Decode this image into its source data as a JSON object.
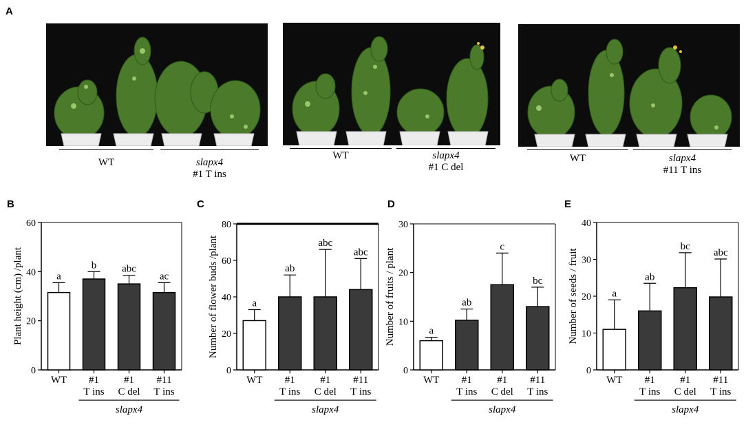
{
  "figure": {
    "panel_letters": [
      "A",
      "B",
      "C",
      "D",
      "E"
    ]
  },
  "photos": [
    {
      "groups": [
        {
          "label": "WT",
          "sublabel": ""
        },
        {
          "label": "slapx4",
          "sublabel": "#1 T ins"
        }
      ]
    },
    {
      "groups": [
        {
          "label": "WT",
          "sublabel": ""
        },
        {
          "label": "slapx4",
          "sublabel": "#1 C del"
        }
      ]
    },
    {
      "groups": [
        {
          "label": "WT",
          "sublabel": ""
        },
        {
          "label": "slapx4",
          "sublabel": "#11 T ins"
        }
      ]
    }
  ],
  "colors": {
    "wt_bar": "#ffffff",
    "mutant_bar": "#3a3a3a",
    "bar_edge": "#000000",
    "photo_bg": "#0c0c0c",
    "plant_green": "#4a7a2a",
    "pot": "#ececec"
  },
  "chart_data": [
    {
      "type": "bar",
      "panel": "B",
      "categories": [
        "WT",
        "#1 T ins",
        "#1 C del",
        "#11 T ins"
      ],
      "category_lines": [
        [
          "WT"
        ],
        [
          "#1",
          "T ins"
        ],
        [
          "#1",
          "C del"
        ],
        [
          "#11",
          "T ins"
        ]
      ],
      "group_label": "slapx4",
      "values": [
        31.5,
        37,
        35,
        31.5
      ],
      "errors": [
        4,
        3,
        3.5,
        4
      ],
      "significance": [
        "a",
        "b",
        "abc",
        "ac"
      ],
      "ylabel": "Plant height (cm) /plant",
      "ylim": [
        0,
        60
      ],
      "yticks": [
        0,
        20,
        40,
        60
      ]
    },
    {
      "type": "bar",
      "panel": "C",
      "categories": [
        "WT",
        "#1 T ins",
        "#1 C del",
        "#11 T ins"
      ],
      "category_lines": [
        [
          "WT"
        ],
        [
          "#1",
          "T ins"
        ],
        [
          "#1",
          "C del"
        ],
        [
          "#11",
          "T ins"
        ]
      ],
      "group_label": "slapx4",
      "values": [
        27,
        40,
        40,
        44
      ],
      "errors": [
        6,
        12,
        26,
        17
      ],
      "significance": [
        "a",
        "ab",
        "abc",
        "abc"
      ],
      "ylabel": "Number of flower buds /plant",
      "ylim": [
        0,
        80
      ],
      "yticks": [
        0,
        20,
        40,
        60,
        80
      ]
    },
    {
      "type": "bar",
      "panel": "D",
      "categories": [
        "WT",
        "#1 T ins",
        "#1 C del",
        "#11 T ins"
      ],
      "category_lines": [
        [
          "WT"
        ],
        [
          "#1",
          "T ins"
        ],
        [
          "#1",
          "C del"
        ],
        [
          "#11",
          "T ins"
        ]
      ],
      "group_label": "slapx4",
      "values": [
        6,
        10.2,
        17.5,
        13
      ],
      "errors": [
        0.7,
        2.3,
        6.5,
        4
      ],
      "significance": [
        "a",
        "ab",
        "c",
        "bc"
      ],
      "ylabel": "Number of fruits / plant",
      "ylim": [
        0,
        30
      ],
      "yticks": [
        0,
        10,
        20,
        30
      ]
    },
    {
      "type": "bar",
      "panel": "E",
      "categories": [
        "WT",
        "#1 T ins",
        "#1 C del",
        "#11 T ins"
      ],
      "category_lines": [
        [
          "WT"
        ],
        [
          "#1",
          "T ins"
        ],
        [
          "#1",
          "C del"
        ],
        [
          "#11",
          "T ins"
        ]
      ],
      "group_label": "slapx4",
      "values": [
        11,
        16,
        22.3,
        19.8
      ],
      "errors": [
        8,
        7.5,
        9.5,
        10.3
      ],
      "significance": [
        "a",
        "ab",
        "bc",
        "abc"
      ],
      "ylabel": "Number of seeds / fruit",
      "ylim": [
        0,
        40
      ],
      "yticks": [
        0,
        10,
        20,
        30,
        40
      ]
    }
  ]
}
